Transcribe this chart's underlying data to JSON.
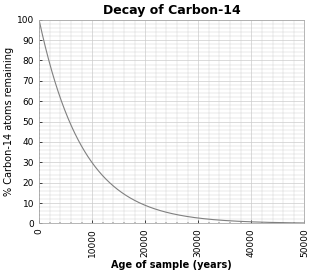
{
  "title": "Decay of Carbon-14",
  "xlabel": "Age of sample (years)",
  "ylabel": "% Carbon-14 atoms remaining",
  "xlim": [
    0,
    50000
  ],
  "ylim": [
    0,
    100
  ],
  "xticks": [
    0,
    10000,
    20000,
    30000,
    40000,
    50000
  ],
  "xtick_labels": [
    "0",
    "10000",
    "20000",
    "30000",
    "40000",
    "50000"
  ],
  "yticks": [
    0,
    10,
    20,
    30,
    40,
    50,
    60,
    70,
    80,
    90,
    100
  ],
  "half_life": 5730,
  "line_color": "#808080",
  "background_color": "#ffffff",
  "grid_color": "#cccccc",
  "title_fontsize": 9,
  "label_fontsize": 7,
  "tick_fontsize": 6.5
}
